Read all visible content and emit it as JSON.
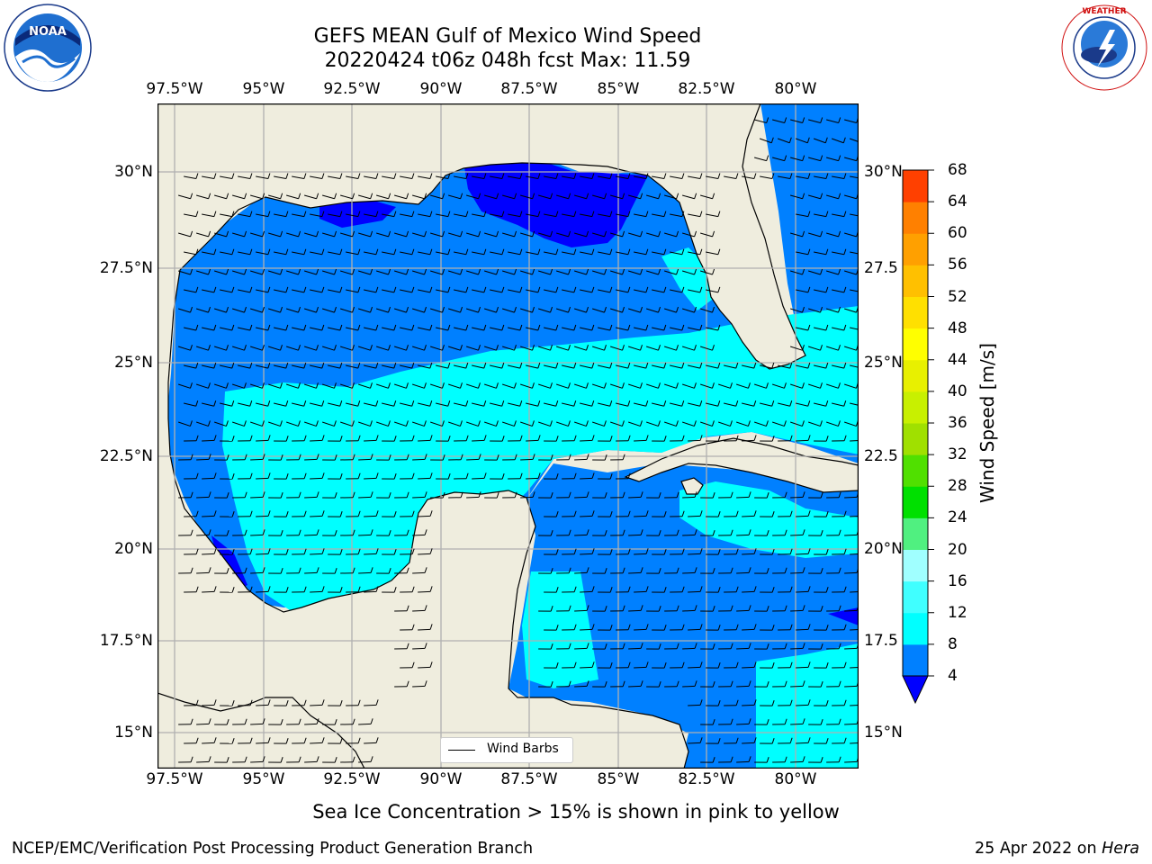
{
  "header": {
    "title_line1": "GEFS MEAN Gulf of Mexico Wind Speed",
    "title_line2": "20220424 t06z 048h fcst   Max: 11.59"
  },
  "logos": {
    "left": {
      "icon": "noaa-logo-icon",
      "text": "NOAA",
      "ring_text": "NATIONAL OCEANIC AND ATMOSPHERIC ADMINISTRATION · U.S. DEPARTMENT OF COMMERCE"
    },
    "right": {
      "icon": "nws-logo-icon",
      "ring_text": "NATIONAL WEATHER SERVICE"
    }
  },
  "map": {
    "lon_labels": [
      "97.5°W",
      "95°W",
      "92.5°W",
      "90°W",
      "87.5°W",
      "85°W",
      "82.5°W",
      "80°W"
    ],
    "lat_labels_left": [
      "30°N",
      "27.5°N",
      "25°N",
      "22.5°N",
      "20°N",
      "17.5°N",
      "15°N"
    ],
    "lat_labels_right": [
      "30°N",
      "27.5",
      "25°N",
      "22.5",
      "20°N",
      "17.5",
      "15°N"
    ],
    "legend_label": "Wind Barbs",
    "colors": {
      "land": "#efedde",
      "ocean_low": "#0000ff",
      "ocean_4_8": "#0080ff",
      "ocean_8_12": "#00ffff",
      "grid": "#b0b0b0"
    }
  },
  "colorbar": {
    "title": "Wind Speed [m/s]",
    "ticks": [
      "4",
      "8",
      "12",
      "16",
      "20",
      "24",
      "28",
      "32",
      "36",
      "40",
      "44",
      "48",
      "52",
      "56",
      "60",
      "64",
      "68"
    ],
    "colors": [
      "#0080ff",
      "#00ffff",
      "#40ffff",
      "#a0ffff",
      "#50f080",
      "#00e000",
      "#50e000",
      "#a0e000",
      "#c8f000",
      "#e8f000",
      "#ffff00",
      "#ffe000",
      "#ffc000",
      "#ffa000",
      "#ff8000",
      "#ff4000",
      "#ff0000"
    ],
    "under_color": "#0000ff"
  },
  "footer": {
    "caption": "Sea Ice Concentration > 15% is shown in pink to yellow",
    "credit_left": "NCEP/EMC/Verification Post Processing Product Generation Branch",
    "credit_date": "25 Apr 2022 on ",
    "credit_machine": "Hera"
  }
}
